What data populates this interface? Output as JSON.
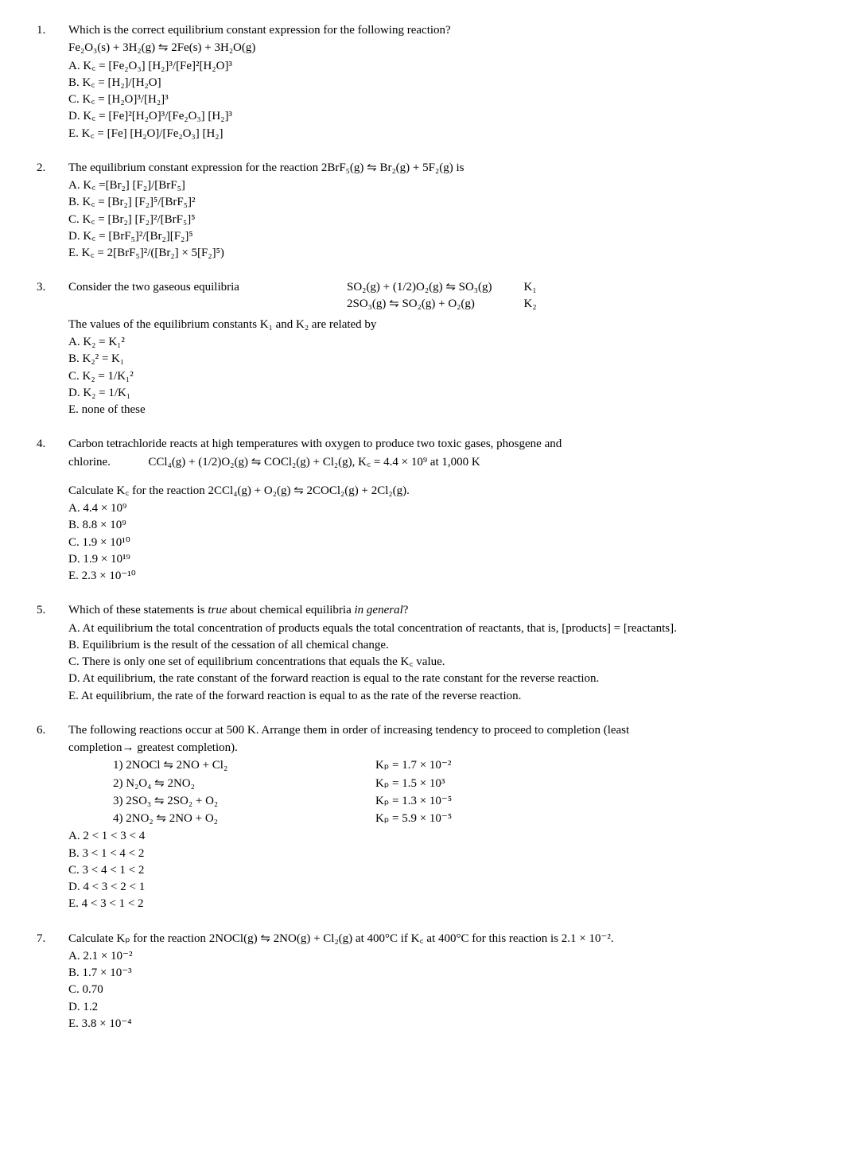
{
  "questions": [
    {
      "number": "1.",
      "stem": "Which is the correct equilibrium constant expression for the following reaction?",
      "reaction": "Fe₂O₃(s) + 3H₂(g)  ⇋  2Fe(s) + 3H₂O(g)",
      "options": [
        "A. K꜀ = [Fe₂O₃] [H₂]³/[Fe]²[H₂O]³",
        "B. K꜀ = [H₂]/[H₂O]",
        "C. K꜀ = [H₂O]³/[H₂]³",
        "D. K꜀ = [Fe]²[H₂O]³/[Fe₂O₃] [H₂]³",
        "E. K꜀ = [Fe] [H₂O]/[Fe₂O₃] [H₂]"
      ]
    },
    {
      "number": "2.",
      "stem": "The equilibrium constant expression for the reaction 2BrF₅(g)  ⇋  Br₂(g) + 5F₂(g) is",
      "options": [
        "A. K꜀ =[Br₂] [F₂]/[BrF₅]",
        "B. K꜀ = [Br₂] [F₂]⁵/[BrF₅]²",
        "C. K꜀ = [Br₂] [F₂]²/[BrF₅]⁵",
        "D. K꜀ = [BrF₅]²/[Br₂][F₂]⁵",
        "E. K꜀ = 2[BrF₅]²/([Br₂] × 5[F₂]⁵)"
      ]
    },
    {
      "number": "3.",
      "consider_label": "Consider the two gaseous equilibria",
      "eq_rows": [
        {
          "eq": "SO₂(g) + (1/2)O₂(g) ⇋ SO₃(g)",
          "k": "K₁"
        },
        {
          "eq": "2SO₃(g) ⇋ SO₂(g) + O₂(g)",
          "k": "K₂"
        }
      ],
      "stem2": "The values of the equilibrium constants K₁ and K₂ are related by",
      "options": [
        "A. K₂ = K₁²",
        "B. K₂² = K₁",
        "C. K₂ = 1/K₁²",
        "D. K₂ = 1/K₁",
        "E. none of these"
      ]
    },
    {
      "number": "4.",
      "stem_line1": "Carbon tetrachloride reacts at high temperatures with oxygen to produce two toxic gases, phosgene and",
      "stem_line2_label": "chlorine.",
      "stem_line2_eq": "CCl₄(g) + (1/2)O₂(g)  ⇋  COCl₂(g) + Cl₂(g), K꜀ = 4.4 × 10⁹ at 1,000 K",
      "calc_line": "Calculate K꜀ for the reaction 2CCl₄(g) + O₂(g)  ⇋  2COCl₂(g) + 2Cl₂(g).",
      "options": [
        "A. 4.4 × 10⁹",
        "B. 8.8 × 10⁹",
        "C. 1.9 × 10¹⁰",
        "D. 1.9 × 10¹⁹",
        "E. 2.3 × 10⁻¹⁰"
      ]
    },
    {
      "number": "5.",
      "stem_html": "Which of these statements is <i>true</i> about chemical equilibria <i>in general</i>?",
      "options": [
        "A. At equilibrium the total concentration of products equals the total concentration of reactants, that is, [products] = [reactants].",
        "B. Equilibrium is the result of the cessation of all chemical change.",
        "C. There is only one set of equilibrium concentrations that equals the K꜀ value.",
        "D. At equilibrium, the rate constant of the forward reaction is equal to the rate constant for the reverse reaction.",
        "E. At equilibrium, the rate of the forward reaction is equal to as the rate of the reverse reaction."
      ]
    },
    {
      "number": "6.",
      "stem_line1": "The following reactions occur at 500 K. Arrange them in order of increasing tendency to proceed to completion (least",
      "stem_line2": "completion→ greatest completion).",
      "rxn_rows": [
        {
          "left": "1)  2NOCl ⇋ 2NO + Cl₂",
          "right": "Kₚ = 1.7 × 10⁻²"
        },
        {
          "left": "2)  N₂O₄ ⇋ 2NO₂",
          "right": "Kₚ = 1.5 × 10³"
        },
        {
          "left": "3)  2SO₃ ⇋ 2SO₂ + O₂",
          "right": "Kₚ = 1.3 × 10⁻⁵"
        },
        {
          "left": "4)  2NO₂ ⇋ 2NO + O₂",
          "right": "Kₚ = 5.9 × 10⁻⁵"
        }
      ],
      "options": [
        "A. 2 < 1 < 3 < 4",
        "B. 3 < 1 < 4 < 2",
        "C. 3 < 4 < 1 < 2",
        "D. 4 < 3 < 2 < 1",
        "E. 4 < 3 < 1 < 2"
      ]
    },
    {
      "number": "7.",
      "stem": "Calculate Kₚ for the reaction 2NOCl(g)  ⇋  2NO(g) + Cl₂(g) at 400°C if K꜀ at 400°C for this reaction is 2.1 × 10⁻².",
      "options": [
        "A. 2.1 × 10⁻²",
        "B. 1.7 × 10⁻³",
        "C. 0.70",
        "D. 1.2",
        "E. 3.8 × 10⁻⁴"
      ]
    }
  ]
}
